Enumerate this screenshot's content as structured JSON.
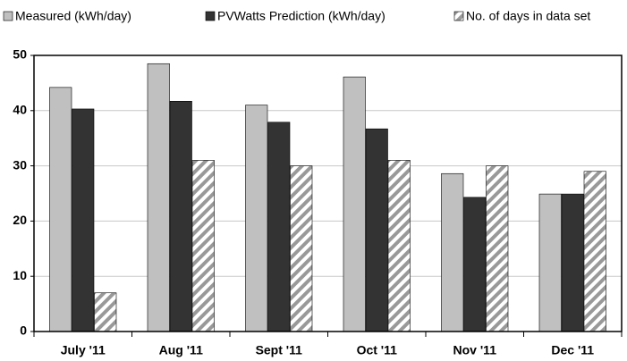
{
  "chart_data": {
    "type": "bar",
    "categories": [
      "July '11",
      "Aug '11",
      "Sept '11",
      "Oct '11",
      "Nov '11",
      "Dec '11"
    ],
    "series": [
      {
        "name": "Measured (kWh/day)",
        "color": "#c0c0c0",
        "values": [
          44.2,
          48.5,
          41,
          46.1,
          28.6,
          24.9
        ]
      },
      {
        "name": "PVWatts Prediction (kWh/day)",
        "color": "#333333",
        "values": [
          40.3,
          41.7,
          37.9,
          36.7,
          24.3,
          24.9
        ]
      },
      {
        "name": "No. of days in data set",
        "color": "#999999",
        "pattern": "hatch",
        "values": [
          7,
          31,
          30,
          31,
          30,
          29
        ]
      }
    ],
    "ylim": [
      0,
      50
    ],
    "yticks": [
      0,
      10,
      20,
      30,
      40,
      50
    ],
    "grid": true,
    "legend": "top"
  }
}
